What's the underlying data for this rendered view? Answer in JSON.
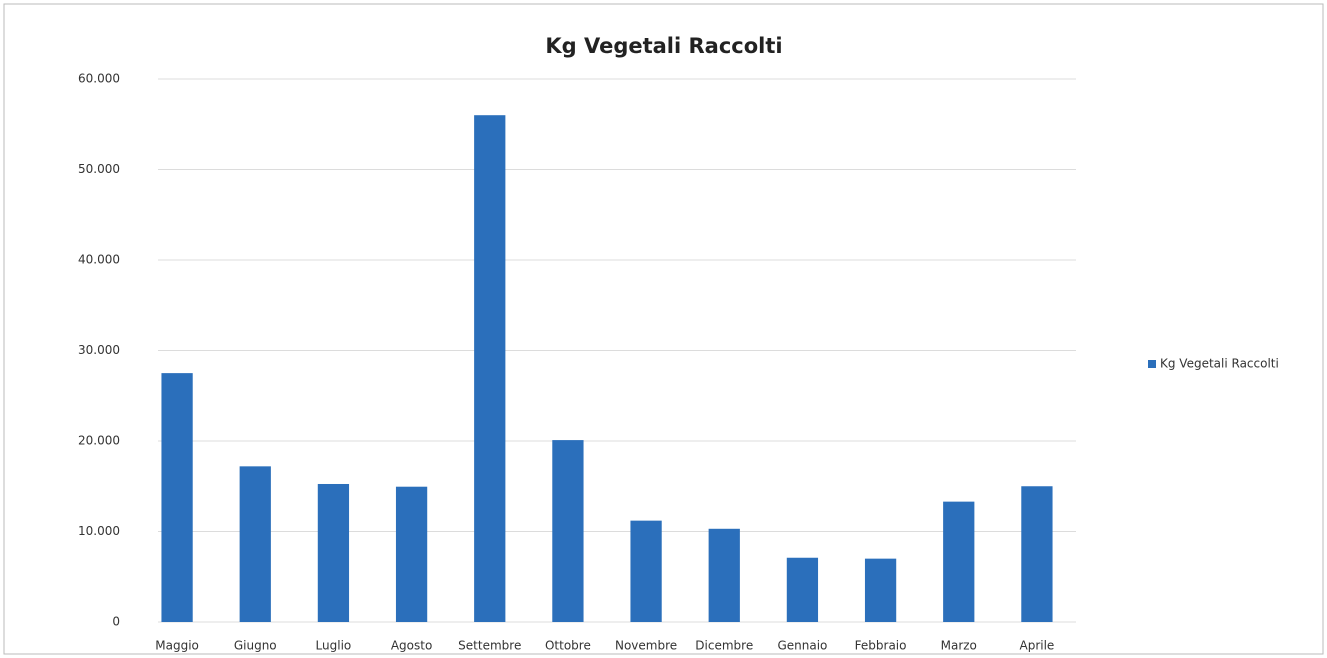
{
  "chart_data": {
    "type": "bar",
    "title": "Kg Vegetali Raccolti",
    "categories": [
      "Maggio",
      "Giugno",
      "Luglio",
      "Agosto",
      "Settembre",
      "Ottobre",
      "Novembre",
      "Dicembre",
      "Gennaio",
      "Febbraio",
      "Marzo",
      "Aprile"
    ],
    "series": [
      {
        "name": "Kg Vegetali Raccolti",
        "color": "#2b6fbb",
        "values": [
          27500,
          17200,
          15250,
          14950,
          56000,
          20100,
          11200,
          10300,
          7100,
          7000,
          13300,
          15000
        ]
      }
    ],
    "ylim": [
      0,
      60000
    ],
    "yticks": [
      0,
      {
        "value": 10000,
        "label": "10.000"
      },
      {
        "value": 20000,
        "label": "20.000"
      },
      {
        "value": 30000,
        "label": "30.000"
      },
      {
        "value": 40000,
        "label": "40.000"
      },
      {
        "value": 50000,
        "label": "50.000"
      },
      {
        "value": 60000,
        "label": "60.000"
      }
    ],
    "grid": true,
    "legend": "right"
  }
}
